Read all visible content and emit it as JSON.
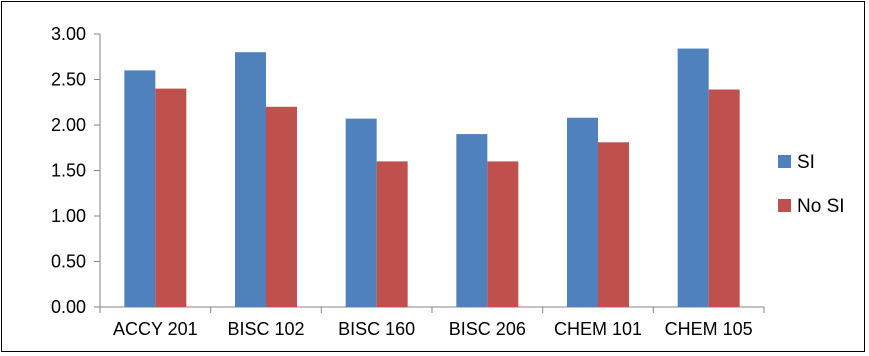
{
  "chart_data": {
    "type": "bar",
    "categories": [
      "ACCY 201",
      "BISC 102",
      "BISC 160",
      "BISC 206",
      "CHEM 101",
      "CHEM 105"
    ],
    "series": [
      {
        "name": "SI",
        "values": [
          2.6,
          2.8,
          2.07,
          1.9,
          2.08,
          2.84
        ],
        "color": "#4F81BD"
      },
      {
        "name": "No SI",
        "values": [
          2.4,
          2.2,
          1.6,
          1.6,
          1.81,
          2.39
        ],
        "color": "#C0504D"
      }
    ],
    "title": "",
    "xlabel": "",
    "ylabel": "",
    "ylim": [
      0,
      3
    ],
    "yticks": [
      "0.00",
      "0.50",
      "1.00",
      "1.50",
      "2.00",
      "2.50",
      "3.00"
    ],
    "grid": false,
    "legend": "right"
  }
}
